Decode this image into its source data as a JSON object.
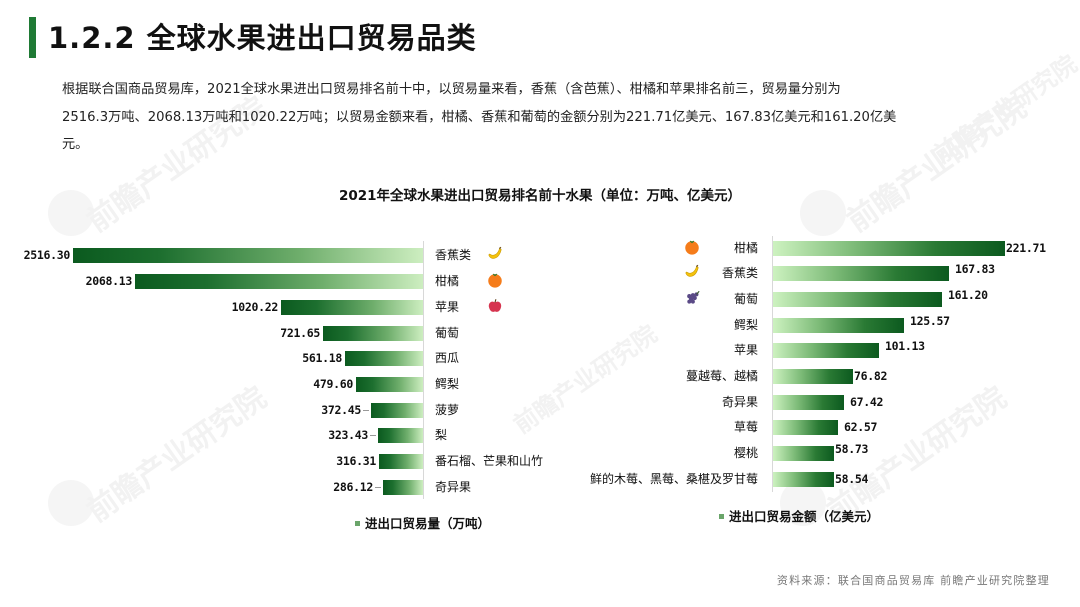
{
  "header": {
    "title": "1.2.2 全球水果进出口贸易品类",
    "accent_color": "#1f7a35"
  },
  "paragraph": {
    "line1": "根据联合国商品贸易库，2021全球水果进出口贸易排名前十中，以贸易量来看，香蕉（含芭蕉）、柑橘和苹果排名前三，贸易量分别为",
    "line2": "2516.3万吨、2068.13万吨和1020.22万吨；以贸易金额来看，柑橘、香蕉和葡萄的金额分别为221.71亿美元、167.83亿美元和161.20亿美",
    "line3": "元。"
  },
  "watermark": "前瞻产业研究院",
  "source": "资料来源：联合国商品贸易库 前瞻产业研究院整理",
  "chart_data": [
    {
      "type": "bar",
      "orientation": "horizontal",
      "direction": "right-to-left",
      "title": "2021年全球水果进出口贸易排名前十水果（单位：万吨、亿美元）",
      "series_name": "进出口贸易量（万吨）",
      "categories": [
        "香蕉类",
        "柑橘",
        "苹果",
        "葡萄",
        "西瓜",
        "鳄梨",
        "菠萝",
        "梨",
        "番石榴、芒果和山竹",
        "奇异果"
      ],
      "values": [
        2516.3,
        2068.13,
        1020.22,
        721.65,
        561.18,
        479.6,
        372.45,
        323.43,
        316.31,
        286.12
      ],
      "labels": [
        "2516.30",
        "2068.13",
        "1020.22",
        "721.65",
        "561.18",
        "479.60",
        "372.45",
        "323.43",
        "316.31",
        "286.12"
      ],
      "icons": [
        "banana-icon",
        "orange-icon",
        "apple-icon",
        "",
        "",
        "",
        "",
        "",
        "",
        ""
      ],
      "xlabel": "",
      "ylabel": "",
      "grid": false,
      "legend_position": "bottom",
      "color_gradient": [
        "#0b5a1f",
        "#cdeec0"
      ]
    },
    {
      "type": "bar",
      "orientation": "horizontal",
      "direction": "left-to-right",
      "series_name": "进出口贸易金额（亿美元）",
      "categories": [
        "柑橘",
        "香蕉类",
        "葡萄",
        "鳄梨",
        "苹果",
        "蔓越莓、越橘",
        "奇异果",
        "草莓",
        "樱桃",
        "鲜的木莓、黑莓、桑椹及罗甘莓"
      ],
      "values": [
        221.71,
        167.83,
        161.2,
        125.57,
        101.13,
        76.82,
        67.42,
        62.57,
        58.73,
        58.54
      ],
      "labels": [
        "221.71",
        "167.83",
        "161.20",
        "125.57",
        "101.13",
        "76.82",
        "67.42",
        "62.57",
        "58.73",
        "58.54"
      ],
      "icons": [
        "orange-icon",
        "banana-icon",
        "grape-icon",
        "",
        "",
        "",
        "",
        "",
        "",
        ""
      ],
      "xlabel": "",
      "ylabel": "",
      "grid": false,
      "legend_position": "bottom",
      "color_gradient": [
        "#cdf2c0",
        "#0c5a1f"
      ]
    }
  ]
}
